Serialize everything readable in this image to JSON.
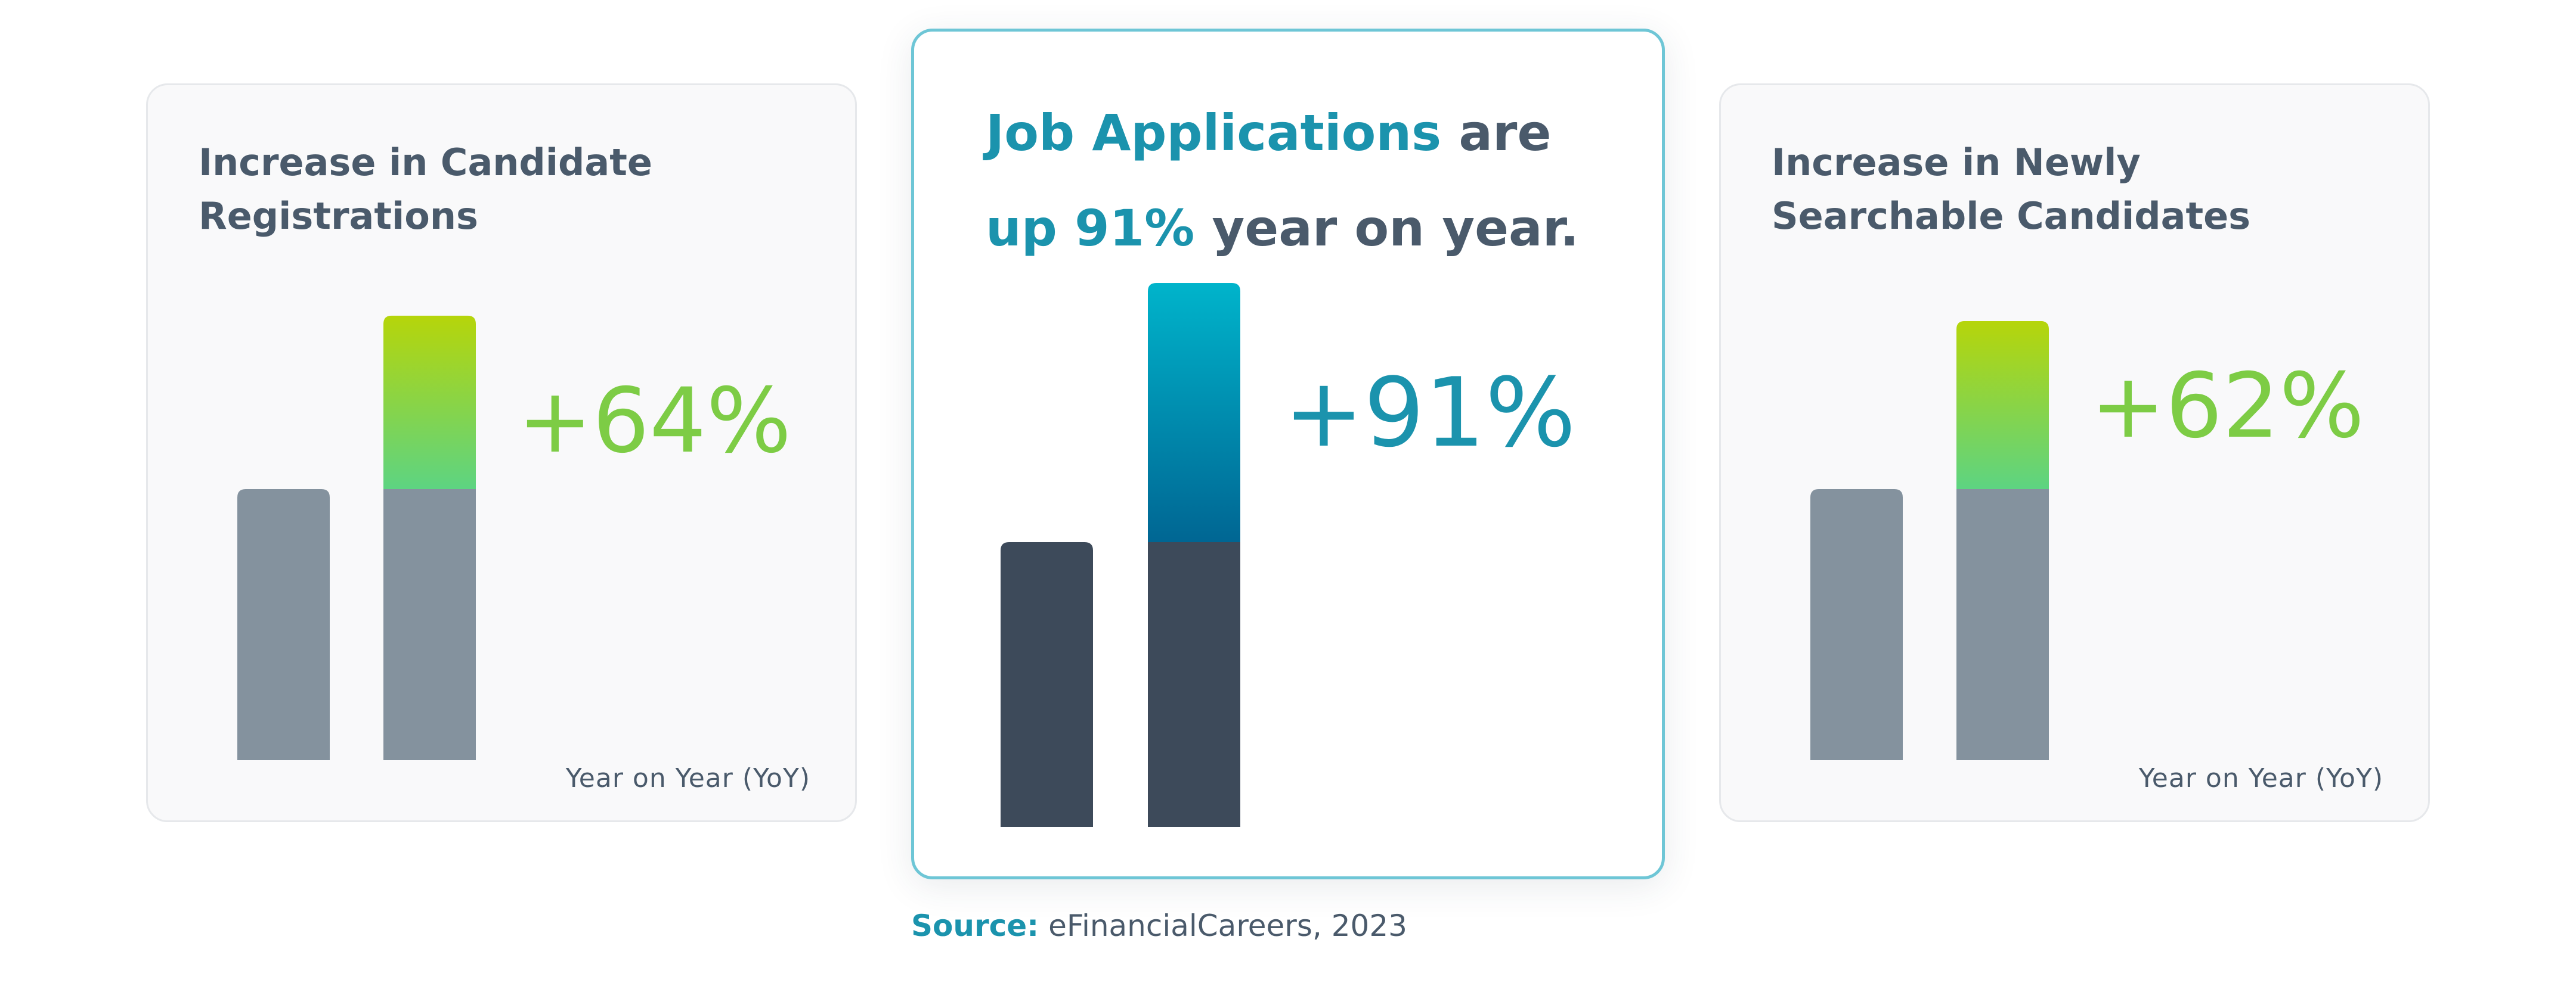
{
  "colors": {
    "base_gray": "#84929e",
    "base_dark": "#3d4a5a",
    "green_top": "#b6d50a",
    "green_bottom": "#5dd482",
    "teal_top": "#00b4cb",
    "teal_bottom": "#006693",
    "green_text": "#7dcc45",
    "teal_text": "#1b93ad",
    "text_slate": "#4a5a6b",
    "center_border": "#6ec6d6"
  },
  "cards": {
    "left": {
      "title_line1": "Increase in Candidate",
      "title_line2": "Registrations",
      "caption": "Year on Year (YoY)"
    },
    "center": {
      "headline": {
        "part1": "Job Applications",
        "part2": " are",
        "part3": "up 91%",
        "part4": " year on year."
      }
    },
    "right": {
      "title_line1": "Increase in Newly",
      "title_line2": "Searchable Candidates",
      "caption": "Year on Year (YoY)"
    }
  },
  "source": {
    "label": "Source:",
    "text": " eFinancialCareers, 2023"
  },
  "chart_data": [
    {
      "type": "bar",
      "id": "left",
      "title": "Increase in Candidate Registrations",
      "xlabel": "Year on Year (YoY)",
      "bars": [
        {
          "base": 100,
          "increase": 0
        },
        {
          "base": 100,
          "increase": 64
        }
      ],
      "change_label": "+64%",
      "scale_max": 164
    },
    {
      "type": "bar",
      "id": "center",
      "title": "Job Applications are up 91% year on year.",
      "bars": [
        {
          "base": 100,
          "increase": 0
        },
        {
          "base": 100,
          "increase": 91
        }
      ],
      "change_label": "+91%",
      "scale_max": 191
    },
    {
      "type": "bar",
      "id": "right",
      "title": "Increase in Newly Searchable Candidates",
      "xlabel": "Year on Year (YoY)",
      "bars": [
        {
          "base": 100,
          "increase": 0
        },
        {
          "base": 100,
          "increase": 62
        }
      ],
      "change_label": "+62%",
      "scale_max": 162
    }
  ]
}
